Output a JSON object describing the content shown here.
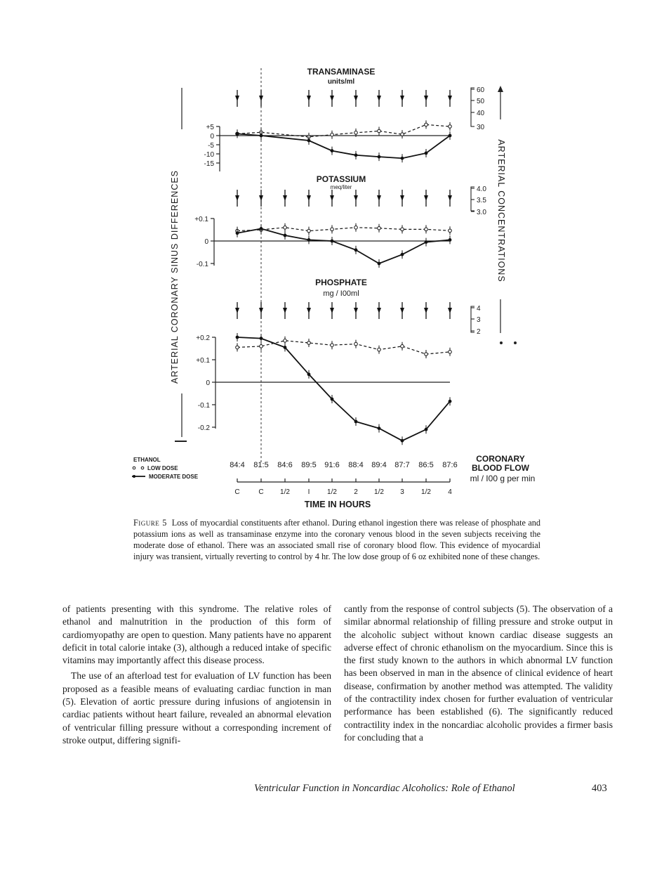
{
  "chart_data": {
    "type": "line",
    "x_ticks": [
      "C",
      "C",
      "1/2",
      "I",
      "1/2",
      "2",
      "1/2",
      "3",
      "1/2",
      "4"
    ],
    "xlabel": "TIME IN HOURS",
    "left_axis_label": "ARTERIAL   CORONARY SINUS DIFFERENCES",
    "right_axis_label": "ARTERIAL CONCENTRATIONS",
    "legend": {
      "title": "ETHANOL",
      "low": "LOW DOSE",
      "moderate": "MODERATE DOSE"
    },
    "coronary_flow": {
      "label_line1": "CORONARY",
      "label_line2": "BLOOD FLOW",
      "label_line3": "ml / I00 g per min",
      "values": [
        "84:4",
        "81:5",
        "84:6",
        "89:5",
        "91:6",
        "88:4",
        "89:4",
        "87:7",
        "86:5",
        "87:6"
      ]
    },
    "panels": [
      {
        "name": "TRANSAMINASE",
        "unit": "units/ml",
        "diff_ticks": [
          "+5",
          "0",
          "-5",
          "-10",
          "-15"
        ],
        "diff_tick_values": [
          5,
          0,
          -5,
          -10,
          -15
        ],
        "ylim": [
          -15,
          6
        ],
        "conc_ticks": [
          "60",
          "50",
          "40",
          "30"
        ],
        "conc_indices": [
          0,
          1,
          3,
          4,
          5,
          6,
          7,
          8,
          9
        ],
        "series": [
          {
            "dose": "low",
            "values": [
              1,
              1.8,
              null,
              -0.7,
              0.5,
              1.6,
              2.5,
              0.7,
              6,
              5
            ]
          },
          {
            "dose": "moderate",
            "values": [
              1,
              0,
              null,
              -2.7,
              -8.3,
              -10.7,
              -11.6,
              -12.4,
              -9.6,
              0
            ]
          }
        ]
      },
      {
        "name": "POTASSIUM",
        "unit": "meq/liter",
        "diff_ticks": [
          "+0.1",
          "0",
          "-0.1"
        ],
        "diff_tick_values": [
          0.1,
          0,
          -0.1
        ],
        "ylim": [
          -0.1,
          0.1
        ],
        "conc_ticks": [
          "4.0",
          "3.5",
          "3.0"
        ],
        "conc_indices": [
          0,
          1,
          2,
          3,
          4,
          5,
          6,
          7,
          8,
          9
        ],
        "series": [
          {
            "dose": "low",
            "values": [
              0.045,
              0.05,
              0.06,
              0.045,
              0.052,
              0.06,
              0.057,
              0.052,
              0.052,
              0.046
            ]
          },
          {
            "dose": "moderate",
            "values": [
              0.035,
              0.055,
              0.025,
              0.005,
              0,
              -0.04,
              -0.1,
              -0.06,
              -0.005,
              0.005
            ]
          }
        ]
      },
      {
        "name": "PHOSPHATE",
        "unit": "mg / I00ml",
        "diff_ticks": [
          "+0.2",
          "+0.1",
          "0",
          "-0.1",
          "-0.2"
        ],
        "diff_tick_values": [
          0.2,
          0.1,
          0,
          -0.1,
          -0.2
        ],
        "ylim": [
          -0.2,
          0.2
        ],
        "conc_ticks": [
          "4",
          "3",
          "2"
        ],
        "conc_indices": [
          0,
          1,
          2,
          3,
          4,
          5,
          6,
          7,
          8,
          9
        ],
        "series": [
          {
            "dose": "low",
            "values": [
              0.155,
              0.16,
              0.185,
              0.175,
              0.165,
              0.17,
              0.145,
              0.16,
              0.125,
              0.135
            ]
          },
          {
            "dose": "moderate",
            "values": [
              0.2,
              0.195,
              0.155,
              0.035,
              -0.075,
              -0.175,
              -0.205,
              -0.26,
              -0.21,
              -0.085
            ]
          }
        ]
      }
    ]
  },
  "caption": {
    "lead": "Figure 5",
    "text": "Loss of myocardial constituents after ethanol. During ethanol ingestion there was release of phosphate and potassium ions as well as transaminase enzyme into the coronary venous blood in the seven subjects receiving the moderate dose of ethanol. There was an associated small rise of coronary blood flow. This evidence of myocardial injury was transient, virtually reverting to control by 4 hr. The low dose group of 6 oz exhibited none of these changes."
  },
  "body": {
    "left_p1": "of patients presenting with this syndrome. The relative roles of ethanol and malnutrition in the production of this form of cardiomyopathy are open to question. Many patients have no apparent deficit in total calorie intake (3), although a reduced intake of specific vitamins may importantly affect this disease process.",
    "left_p2": "The use of an afterload test for evaluation of LV function has been proposed as a feasible means of evaluating cardiac function in man (5). Elevation of aortic pressure during infusions of angiotensin in cardiac patients without heart failure, revealed an abnormal elevation of ventricular filling pressure without a corresponding increment of stroke output, differing signifi-",
    "right_p1": "cantly from the response of control subjects (5). The observation of a similar abnormal relationship of filling pressure and stroke output in the alcoholic subject without known cardiac disease suggests an adverse effect of chronic ethanolism on the myocardium. Since this is the first study known to the authors in which abnormal LV function has been observed in man in the absence of clinical evidence of heart disease, confirmation by another method was attempted. The validity of the contractility index chosen for further evaluation of ventricular performance has been established (6). The significantly reduced contractility index in the noncardiac alcoholic provides a firmer basis for concluding that a"
  },
  "footer": {
    "running_title": "Ventricular Function in Noncardiac Alcoholics: Role of Ethanol",
    "page_number": "403"
  }
}
